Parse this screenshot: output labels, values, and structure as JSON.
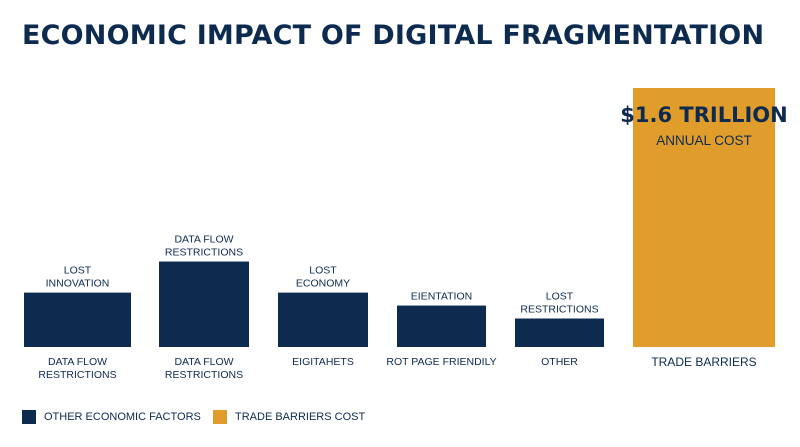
{
  "colors": {
    "navy": "#0d2a4f",
    "gold": "#e19d2c",
    "text": "#0d2a4f"
  },
  "chart_data": {
    "type": "bar",
    "title": "ECONOMIC IMPACT OF DIGITAL FRAGMENTATION",
    "categories": [
      "DATA FLOW RESTRICTIONS",
      "DATA FLOW RESTRICTIONS",
      "EIGITAHETS",
      "ROT PAGE FRIENDILY",
      "OTHER",
      "TRADE BARRIERS"
    ],
    "bar_labels": [
      "LOST INNOVATION",
      "DATA FLOW RESTRICTIONS",
      "LOST ECONOMY",
      "EIENTATION",
      "LOST RESTRICTIONS",
      ""
    ],
    "values": [
      0.21,
      0.33,
      0.21,
      0.16,
      0.11,
      1.0
    ],
    "series_index": [
      0,
      0,
      0,
      0,
      0,
      1
    ],
    "highlight": {
      "value_label": "$1.6 TRILLION",
      "sub_label": "ANNUAL COST"
    },
    "legend": [
      {
        "label": "OTHER ECONOMIC FACTORS",
        "color": "#0d2a4f"
      },
      {
        "label": "TRADE BARRIERS COST",
        "color": "#e19d2c"
      }
    ],
    "axes_visible": false,
    "grid": false,
    "legend_position": "bottom-left"
  }
}
